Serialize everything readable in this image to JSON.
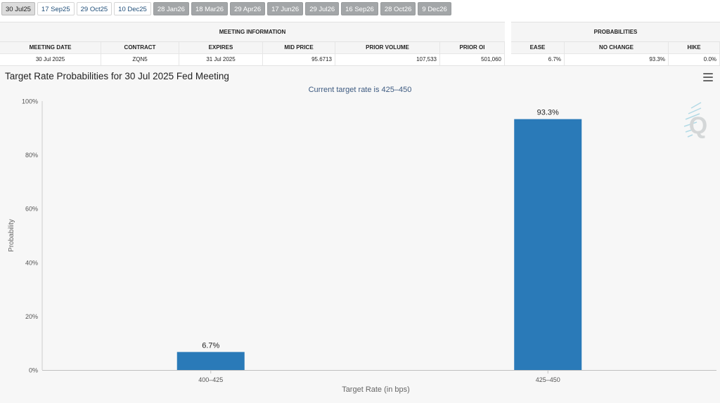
{
  "tabs": [
    {
      "label": "30 Jul25",
      "style": "active"
    },
    {
      "label": "17 Sep25",
      "style": "light"
    },
    {
      "label": "29 Oct25",
      "style": "light"
    },
    {
      "label": "10 Dec25",
      "style": "light"
    },
    {
      "label": "28 Jan26",
      "style": "dark"
    },
    {
      "label": "18 Mar26",
      "style": "dark"
    },
    {
      "label": "29 Apr26",
      "style": "dark"
    },
    {
      "label": "17 Jun26",
      "style": "dark"
    },
    {
      "label": "29 Jul26",
      "style": "dark"
    },
    {
      "label": "16 Sep26",
      "style": "dark"
    },
    {
      "label": "28 Oct26",
      "style": "dark"
    },
    {
      "label": "9 Dec26",
      "style": "dark"
    }
  ],
  "meeting_info": {
    "heading": "MEETING INFORMATION",
    "columns": [
      "MEETING DATE",
      "CONTRACT",
      "EXPIRES",
      "MID PRICE",
      "PRIOR VOLUME",
      "PRIOR OI"
    ],
    "row": [
      "30 Jul 2025",
      "ZQN5",
      "31 Jul 2025",
      "95.6713",
      "107,533",
      "501,060"
    ]
  },
  "probabilities": {
    "heading": "PROBABILITIES",
    "columns": [
      "EASE",
      "NO CHANGE",
      "HIKE"
    ],
    "row": [
      "6.7%",
      "93.3%",
      "0.0%"
    ]
  },
  "chart": {
    "title": "Target Rate Probabilities for 30 Jul 2025 Fed Meeting",
    "subtitle": "Current target rate is 425–450"
  },
  "chart_data": {
    "type": "bar",
    "title": "Target Rate Probabilities for 30 Jul 2025 Fed Meeting",
    "subtitle": "Current target rate is 425–450",
    "categories": [
      "400–425",
      "425–450"
    ],
    "values": [
      6.7,
      93.3
    ],
    "data_labels": [
      "6.7%",
      "93.3%"
    ],
    "xlabel": "Target Rate (in bps)",
    "ylabel": "Probability",
    "ylim": [
      0,
      100
    ],
    "yticks": [
      "0%",
      "20%",
      "40%",
      "60%",
      "80%",
      "100%"
    ],
    "grid": false,
    "bar_color": "#2a7ab8"
  },
  "colors": {
    "bar": "#2a7ab8",
    "watermark": "#7cc3d9"
  }
}
